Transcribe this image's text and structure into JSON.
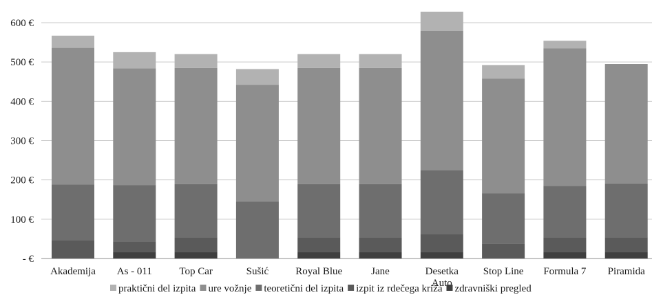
{
  "chart_data": {
    "type": "bar",
    "stacked": true,
    "title": "",
    "xlabel": "",
    "ylabel": "",
    "ylim": [
      0,
      600
    ],
    "grid": true,
    "legend_position": "bottom",
    "y_tick_labels": [
      "-  €",
      "100 €",
      "200 €",
      "300 €",
      "400 €",
      "500 €",
      "600 €"
    ],
    "y_tick_values": [
      0,
      100,
      200,
      300,
      400,
      500,
      600
    ],
    "categories": [
      [
        "Akademija"
      ],
      [
        "As - 011"
      ],
      [
        "Top Car"
      ],
      [
        "Sušić"
      ],
      [
        "Royal Blue"
      ],
      [
        "Jane"
      ],
      [
        "Desetka",
        "Auto"
      ],
      [
        "Stop Line"
      ],
      [
        "Formula 7"
      ],
      [
        "Piramida"
      ]
    ],
    "series": [
      {
        "name": "zdravniški pregled",
        "color": "#3f3f3f",
        "values": [
          0,
          17,
          17,
          0,
          17,
          17,
          17,
          0,
          17,
          17
        ]
      },
      {
        "name": "izpit iz rdečega križa",
        "color": "#5a5a5a",
        "values": [
          47,
          26,
          37,
          0,
          37,
          37,
          45,
          38,
          37,
          37
        ]
      },
      {
        "name": "teoretični del izpita",
        "color": "#6e6e6e",
        "values": [
          141,
          144,
          135,
          145,
          135,
          135,
          163,
          128,
          131,
          137
        ]
      },
      {
        "name": "ure vožnje",
        "color": "#8e8e8e",
        "values": [
          348,
          297,
          296,
          297,
          296,
          296,
          354,
          292,
          350,
          304
        ]
      },
      {
        "name": "praktični del izpita",
        "color": "#b2b2b2",
        "values": [
          31,
          41,
          35,
          40,
          35,
          35,
          49,
          34,
          19,
          0
        ]
      }
    ],
    "legend_order": [
      "praktični del izpita",
      "ure vožnje",
      "teoretični del izpita",
      "izpit iz rdečega križa",
      "zdravniški pregled"
    ]
  }
}
